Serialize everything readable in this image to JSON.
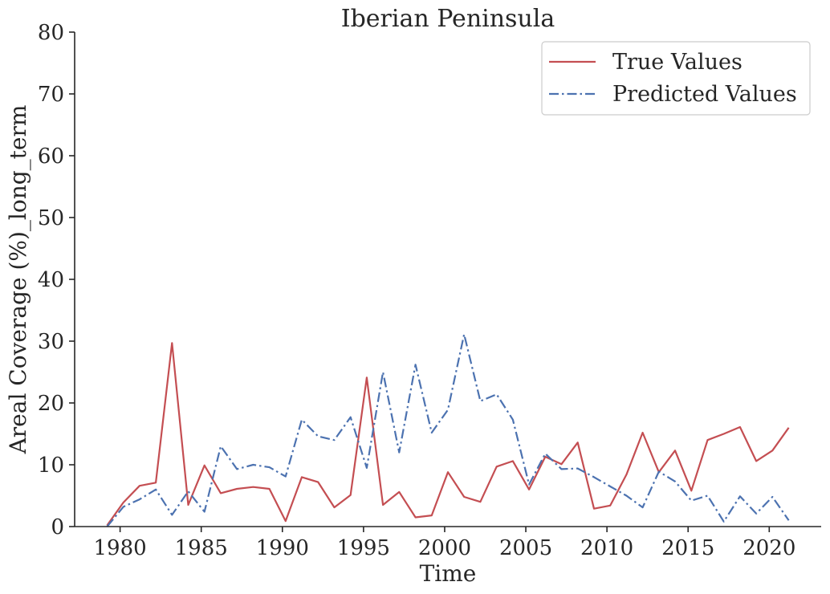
{
  "chart_data": {
    "type": "line",
    "title": "Iberian Peninsula",
    "xlabel": "Time",
    "ylabel": "Areal Coverage (%)_long_term",
    "xlim": [
      1977.2,
      2023.2
    ],
    "ylim": [
      0,
      80
    ],
    "xticks": [
      1980,
      1985,
      1990,
      1995,
      2000,
      2005,
      2010,
      2015,
      2020
    ],
    "yticks": [
      0,
      10,
      20,
      30,
      40,
      50,
      60,
      70,
      80
    ],
    "grid": false,
    "legend": "top-right",
    "x": [
      1979.2,
      1980.2,
      1981.2,
      1982.2,
      1983.2,
      1984.2,
      1985.2,
      1986.2,
      1987.2,
      1988.2,
      1989.2,
      1990.2,
      1991.2,
      1992.2,
      1993.2,
      1994.2,
      1995.2,
      1996.2,
      1997.2,
      1998.2,
      1999.2,
      2000.2,
      2001.2,
      2002.2,
      2003.2,
      2004.2,
      2005.2,
      2006.2,
      2007.2,
      2008.2,
      2009.2,
      2010.2,
      2011.2,
      2012.2,
      2013.2,
      2014.2,
      2015.2,
      2016.2,
      2017.2,
      2018.2,
      2019.2,
      2020.2,
      2021.2
    ],
    "series": [
      {
        "name": "True Values",
        "color": "#c44e52",
        "style": "solid",
        "values": [
          0.2,
          3.9,
          6.6,
          7.1,
          29.7,
          3.5,
          9.9,
          5.4,
          6.1,
          6.4,
          6.1,
          0.9,
          8.0,
          7.2,
          3.1,
          5.1,
          24.1,
          3.5,
          5.6,
          1.5,
          1.8,
          8.8,
          4.8,
          4.0,
          9.7,
          10.6,
          6.0,
          11.3,
          10.1,
          13.6,
          2.9,
          3.4,
          8.4,
          15.2,
          8.8,
          12.3,
          5.8,
          14.0,
          15.0,
          16.1,
          10.6,
          12.3,
          16.0
        ]
      },
      {
        "name": "Predicted Values",
        "color": "#4c72b0",
        "style": "dashdot",
        "values": [
          0.0,
          3.2,
          4.4,
          6.0,
          1.9,
          5.7,
          2.4,
          13.0,
          9.3,
          10.0,
          9.6,
          8.1,
          17.3,
          14.6,
          14.0,
          17.7,
          9.5,
          25.0,
          12.0,
          26.2,
          15.2,
          18.9,
          31.1,
          20.3,
          21.4,
          17.3,
          6.8,
          11.8,
          9.3,
          9.4,
          8.0,
          6.5,
          5.0,
          3.1,
          8.9,
          7.3,
          4.2,
          5.0,
          0.8,
          4.9,
          2.1,
          4.8,
          1.0
        ]
      }
    ]
  }
}
